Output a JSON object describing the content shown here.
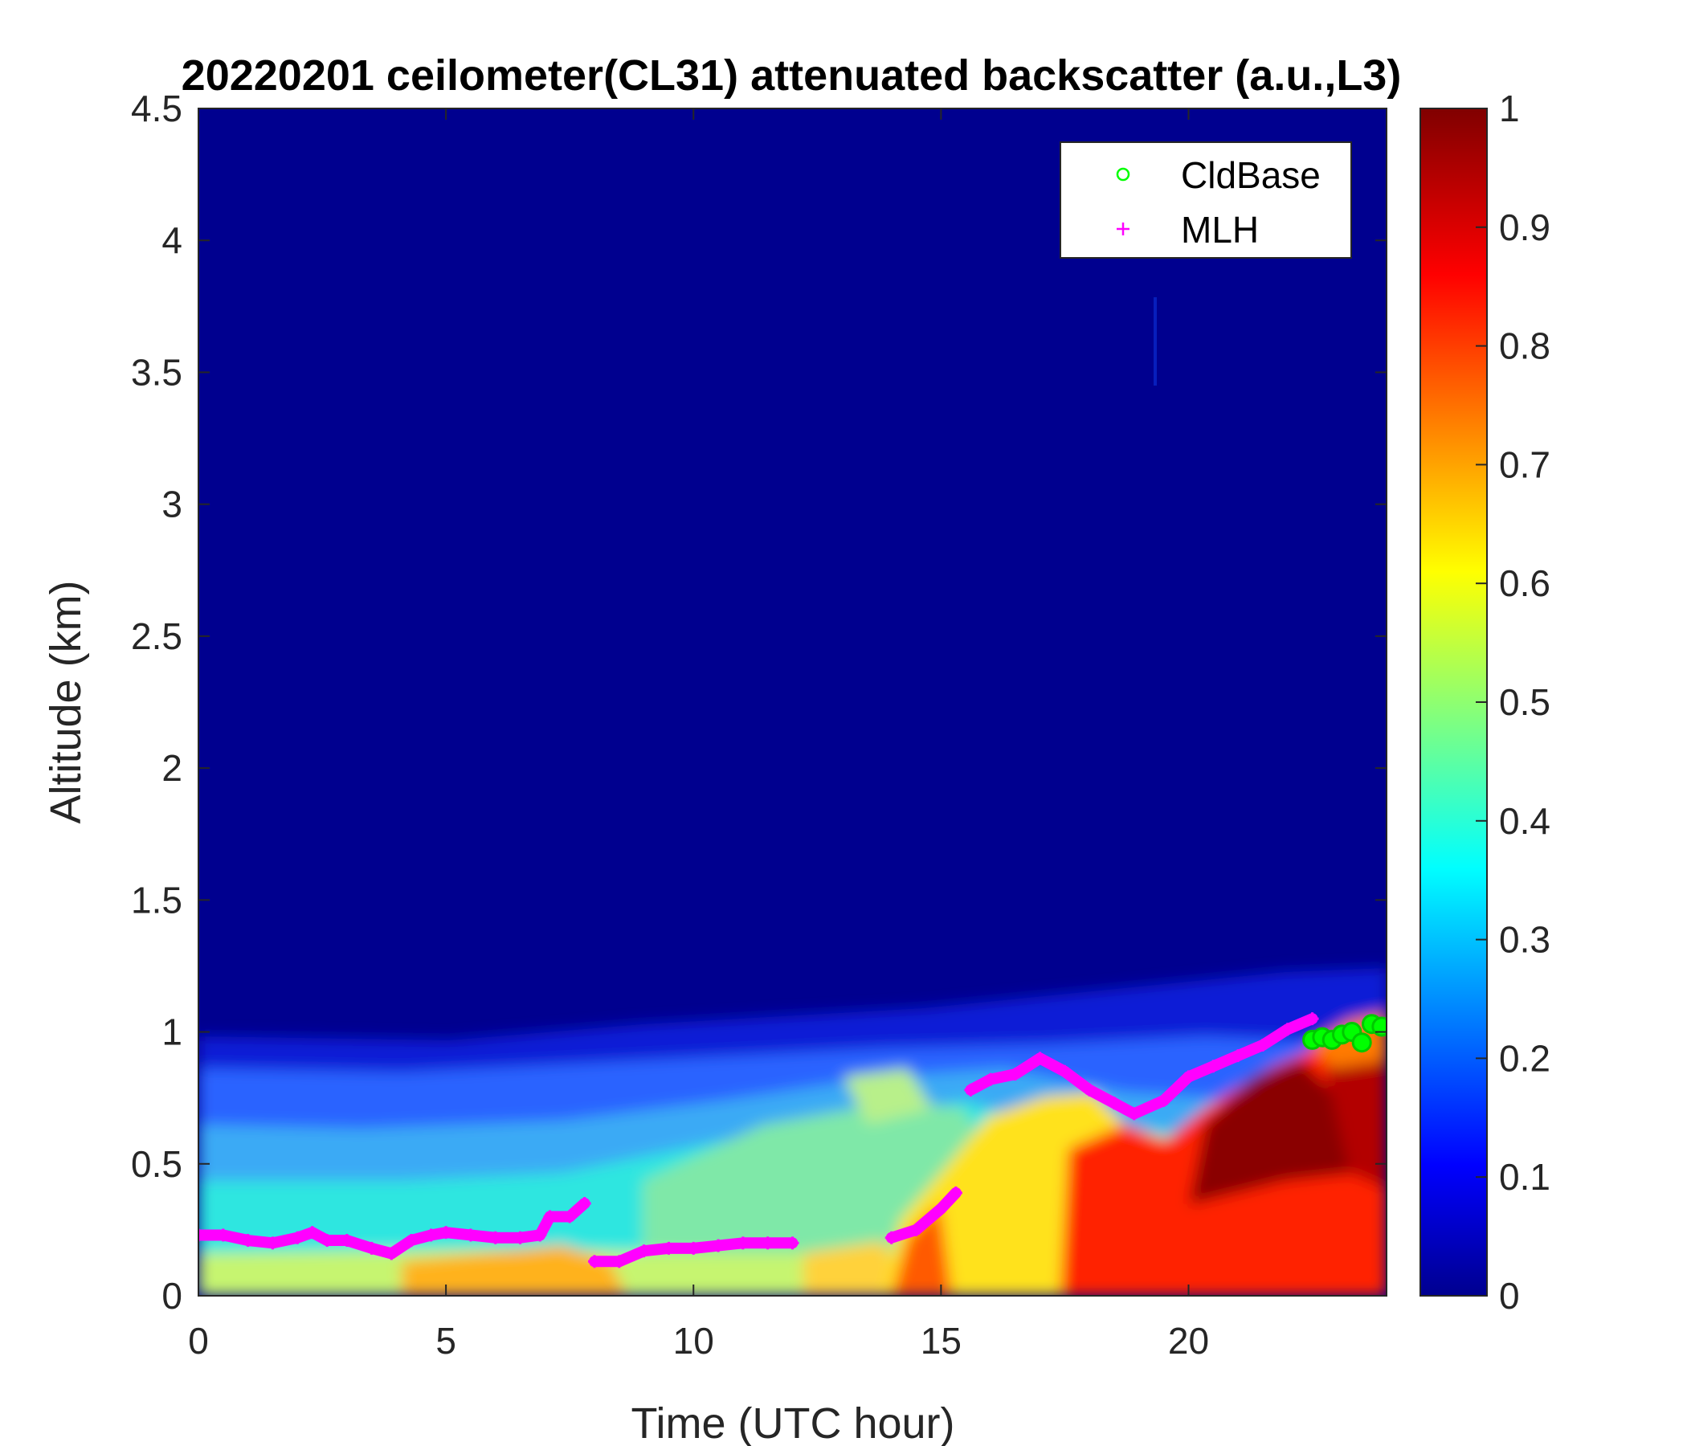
{
  "chart_data": {
    "type": "heatmap",
    "title": "20220201 ceilometer(CL31) attenuated backscatter (a.u.,L3)",
    "xlabel": "Time (UTC hour)",
    "ylabel": "Altitude (km)",
    "xlim": [
      0,
      24
    ],
    "ylim": [
      0,
      4.5
    ],
    "xticks": [
      "0",
      "5",
      "10",
      "15",
      "20"
    ],
    "yticks": [
      "0",
      "0.5",
      "1",
      "1.5",
      "2",
      "2.5",
      "3",
      "3.5",
      "4",
      "4.5"
    ],
    "colorbar": {
      "range": [
        0,
        1
      ],
      "ticks": [
        "0",
        "0.1",
        "0.2",
        "0.3",
        "0.4",
        "0.5",
        "0.6",
        "0.7",
        "0.8",
        "0.9",
        "1"
      ],
      "colormap": "jet"
    },
    "legend": {
      "position": "top-right",
      "entries": [
        {
          "label": "CldBase",
          "marker": "circle",
          "color": "#00ff00"
        },
        {
          "label": "MLH",
          "marker": "plus",
          "color": "#ff00ff"
        }
      ]
    },
    "series": [
      {
        "name": "MLH",
        "x": [
          0,
          0.5,
          1,
          1.5,
          2,
          2.3,
          2.6,
          3,
          3.5,
          3.9,
          4.3,
          4.7,
          5,
          5.5,
          6,
          6.5,
          6.9,
          7.1,
          7.5,
          7.8,
          8.0,
          8.5,
          9,
          9.5,
          10,
          10.5,
          11,
          11.5,
          12,
          14,
          14.5,
          15,
          15.3,
          15.6,
          16,
          16.5,
          17,
          17.5,
          18,
          18.5,
          18.9,
          19.5,
          20,
          20.5,
          21,
          21.5,
          22,
          22.5
        ],
        "y": [
          0.23,
          0.23,
          0.21,
          0.2,
          0.22,
          0.24,
          0.21,
          0.21,
          0.18,
          0.16,
          0.21,
          0.23,
          0.24,
          0.23,
          0.22,
          0.22,
          0.23,
          0.3,
          0.3,
          0.35,
          0.13,
          0.13,
          0.17,
          0.18,
          0.18,
          0.19,
          0.2,
          0.2,
          0.2,
          0.22,
          0.25,
          0.33,
          0.39,
          0.78,
          0.82,
          0.84,
          0.9,
          0.85,
          0.78,
          0.73,
          0.69,
          0.74,
          0.83,
          0.87,
          0.91,
          0.95,
          1.01,
          1.05
        ]
      },
      {
        "name": "CldBase",
        "x": [
          22.5,
          22.7,
          22.9,
          23.1,
          23.3,
          23.5,
          23.7,
          23.9
        ],
        "y": [
          0.97,
          0.98,
          0.97,
          0.99,
          1.0,
          0.96,
          1.03,
          1.02
        ]
      }
    ]
  }
}
